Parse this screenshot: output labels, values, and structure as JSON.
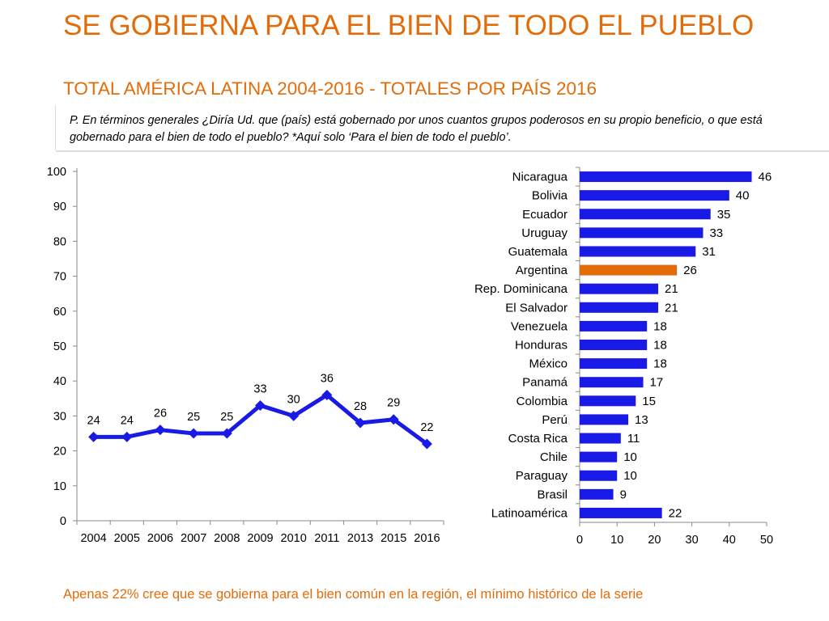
{
  "title": "SE GOBIERNA PARA EL BIEN DE TODO EL PUEBLO",
  "subtitle": "TOTAL AMÉRICA LATINA 2004-2016 - TOTALES POR PAÍS 2016",
  "question": "P. En términos generales ¿Diría Ud. que (país) está gobernado por unos cuantos grupos poderosos en su propio beneficio, o que está gobernado para el bien de todo el pueblo? *Aquí solo ‘Para el bien de todo el pueblo’.",
  "footer": "Apenas 22% cree que se gobierna para el bien común en la región, el mínimo histórico de la serie",
  "colors": {
    "accent": "#e36c0a",
    "series": "#1a1ae6",
    "highlight": "#e36c0a"
  },
  "chart_data": [
    {
      "type": "line",
      "title": "",
      "categories": [
        "2004",
        "2005",
        "2006",
        "2007",
        "2008",
        "2009",
        "2010",
        "2011",
        "2013",
        "2015",
        "2016"
      ],
      "series": [
        {
          "name": "Para el bien de todo el pueblo",
          "values": [
            24,
            24,
            26,
            25,
            25,
            33,
            30,
            36,
            28,
            29,
            22
          ]
        }
      ],
      "ylim": [
        0,
        100
      ],
      "yticks": [
        0,
        10,
        20,
        30,
        40,
        50,
        60,
        70,
        80,
        90,
        100
      ],
      "marker": "diamond",
      "grid": false
    },
    {
      "type": "bar",
      "orientation": "horizontal",
      "title": "",
      "categories": [
        "Nicaragua",
        "Bolivia",
        "Ecuador",
        "Uruguay",
        "Guatemala",
        "Argentina",
        "Rep. Dominicana",
        "El Salvador",
        "Venezuela",
        "Honduras",
        "México",
        "Panamá",
        "Colombia",
        "Perú",
        "Costa Rica",
        "Chile",
        "Paraguay",
        "Brasil",
        "Latinoamérica"
      ],
      "values": [
        46,
        40,
        35,
        33,
        31,
        26,
        21,
        21,
        18,
        18,
        18,
        17,
        15,
        13,
        11,
        10,
        10,
        9,
        22
      ],
      "highlight": "Argentina",
      "xlim": [
        0,
        50
      ],
      "xticks": [
        0,
        10,
        20,
        30,
        40,
        50
      ],
      "grid": false
    }
  ]
}
